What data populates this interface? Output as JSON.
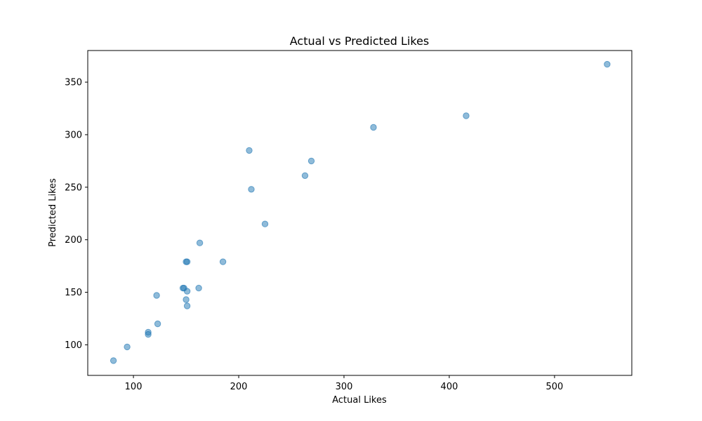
{
  "chart_data": {
    "type": "scatter",
    "title": "Actual vs Predicted Likes",
    "xlabel": "Actual Likes",
    "ylabel": "Predicted Likes",
    "xlim": [
      56.6,
      573.4
    ],
    "ylim": [
      70.9,
      380.1
    ],
    "xticks": [
      100,
      200,
      300,
      400,
      500
    ],
    "yticks": [
      100,
      150,
      200,
      250,
      300,
      350
    ],
    "grid": false,
    "legend": "none",
    "marker_color": "#1f77b4",
    "marker_alpha": 0.5,
    "points": [
      {
        "x": 81,
        "y": 85
      },
      {
        "x": 94,
        "y": 98
      },
      {
        "x": 114,
        "y": 110
      },
      {
        "x": 114,
        "y": 112
      },
      {
        "x": 122,
        "y": 147
      },
      {
        "x": 123,
        "y": 120
      },
      {
        "x": 147,
        "y": 154
      },
      {
        "x": 148,
        "y": 154
      },
      {
        "x": 150,
        "y": 143
      },
      {
        "x": 150,
        "y": 179
      },
      {
        "x": 151,
        "y": 179
      },
      {
        "x": 151,
        "y": 151
      },
      {
        "x": 151,
        "y": 137
      },
      {
        "x": 162,
        "y": 154
      },
      {
        "x": 163,
        "y": 197
      },
      {
        "x": 185,
        "y": 179
      },
      {
        "x": 210,
        "y": 285
      },
      {
        "x": 212,
        "y": 248
      },
      {
        "x": 225,
        "y": 215
      },
      {
        "x": 263,
        "y": 261
      },
      {
        "x": 269,
        "y": 275
      },
      {
        "x": 328,
        "y": 307
      },
      {
        "x": 416,
        "y": 318
      },
      {
        "x": 550,
        "y": 367
      }
    ]
  }
}
